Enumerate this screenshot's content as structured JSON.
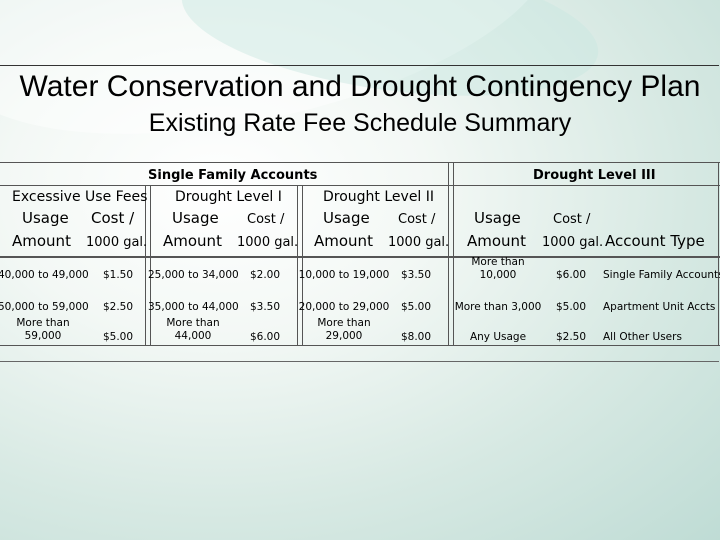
{
  "title": "Water Conservation and Drought Contingency Plan",
  "subtitle": "Existing Rate Fee Schedule Summary",
  "groups": {
    "single_family": "Single Family Accounts",
    "drought_level_iii": "Drought Level III"
  },
  "sections": {
    "excessive": "Excessive Use Fees",
    "level_i": "Drought Level I",
    "level_ii": "Drought Level II"
  },
  "headers": {
    "usage": "Usage",
    "amount": "Amount",
    "cost": "Cost /",
    "per": "1000 gal.",
    "account_type": "Account Type"
  },
  "rows": [
    {
      "ex_usage": "40,000 to 49,000",
      "ex_cost": "$1.50",
      "l1_usage": "25,000 to 34,000",
      "l1_cost": "$2.00",
      "l2_usage": "10,000 to 19,000",
      "l2_cost": "$3.50",
      "l3_usage": "More than\n10,000",
      "l3_cost": "$6.00",
      "account": "Single Family Accounts"
    },
    {
      "ex_usage": "50,000 to 59,000",
      "ex_cost": "$2.50",
      "l1_usage": "35,000 to 44,000",
      "l1_cost": "$3.50",
      "l2_usage": "20,000 to 29,000",
      "l2_cost": "$5.00",
      "l3_usage": "More than 3,000",
      "l3_cost": "$5.00",
      "account": "Apartment Unit Accts"
    },
    {
      "ex_usage": "More than\n59,000",
      "ex_cost": "$5.00",
      "l1_usage": "More than\n44,000",
      "l1_cost": "$6.00",
      "l2_usage": "More than\n29,000",
      "l2_cost": "$8.00",
      "l3_usage": "Any Usage",
      "l3_cost": "$2.50",
      "account": "All Other Users"
    }
  ]
}
